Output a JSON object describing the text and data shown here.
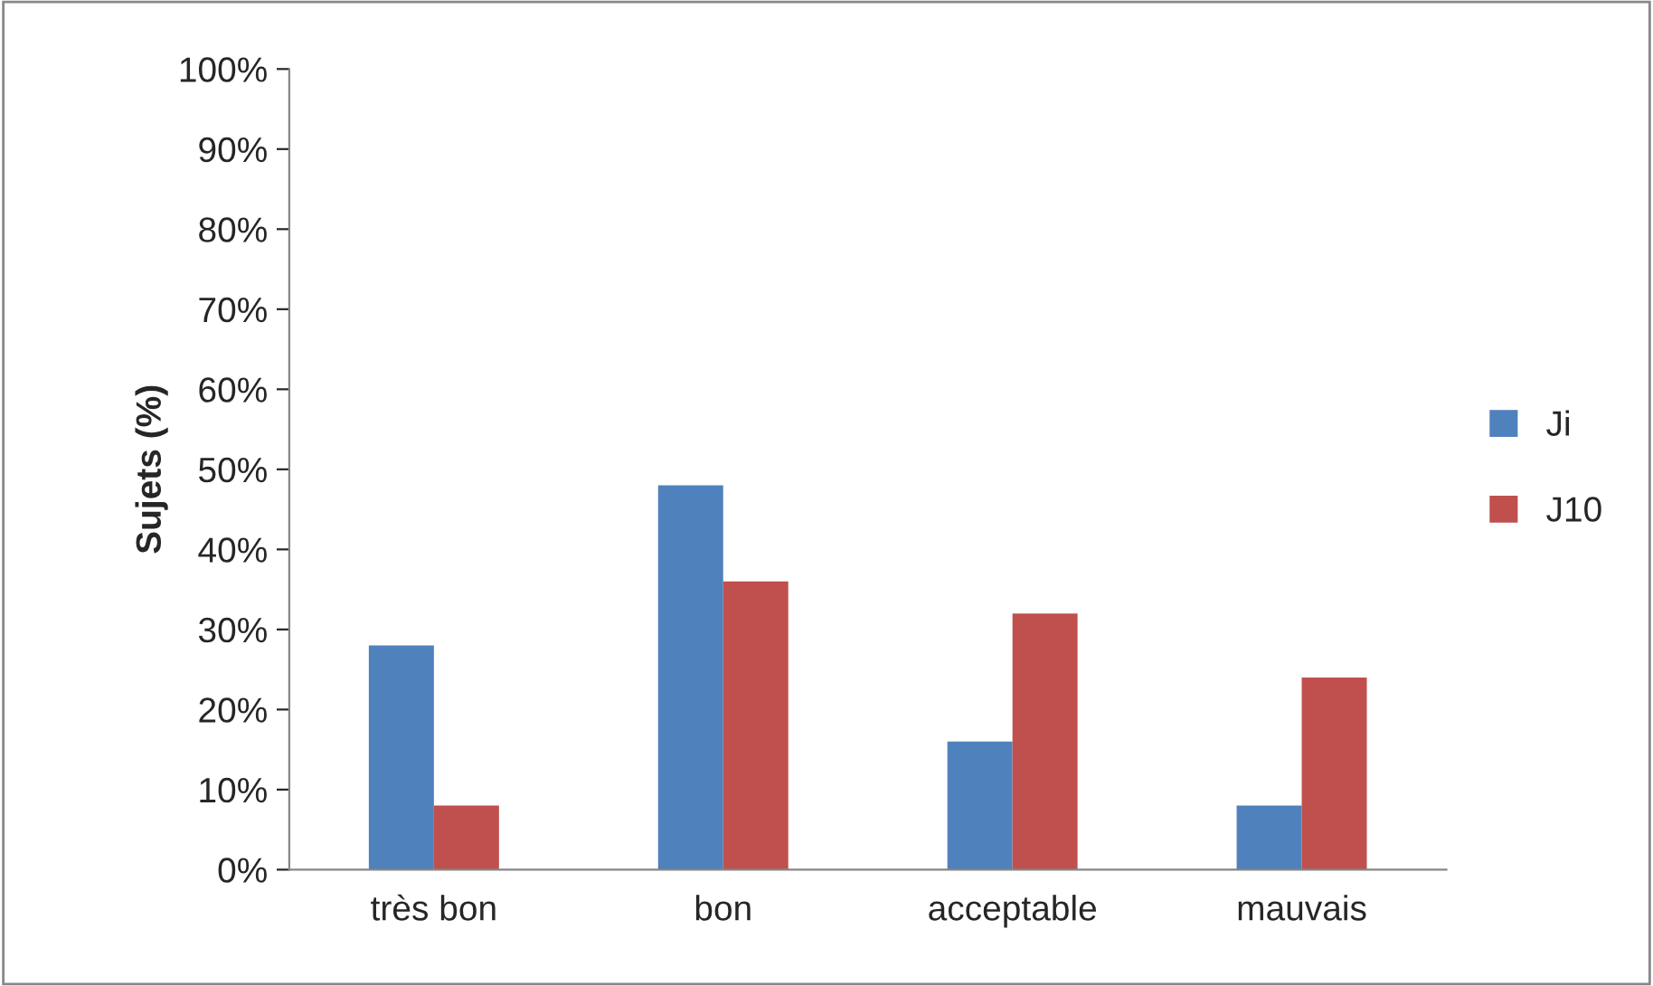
{
  "chart_data": {
    "type": "bar",
    "ylabel": "Sujets (%)",
    "categories": [
      "très bon",
      "bon",
      "acceptable",
      "mauvais"
    ],
    "series": [
      {
        "name": "Ji",
        "color": "#4f81bd",
        "values": [
          28,
          48,
          16,
          8
        ]
      },
      {
        "name": "J10",
        "color": "#c0504d",
        "values": [
          8,
          36,
          32,
          24
        ]
      }
    ],
    "ylim": [
      0,
      100
    ],
    "yticks": [
      {
        "value": 0,
        "label": "0%"
      },
      {
        "value": 10,
        "label": "10%"
      },
      {
        "value": 20,
        "label": "20%"
      },
      {
        "value": 30,
        "label": "30%"
      },
      {
        "value": 40,
        "label": "40%"
      },
      {
        "value": 50,
        "label": "50%"
      },
      {
        "value": 60,
        "label": "60%"
      },
      {
        "value": 70,
        "label": "70%"
      },
      {
        "value": 80,
        "label": "80%"
      },
      {
        "value": 90,
        "label": "90%"
      },
      {
        "value": 100,
        "label": "100%"
      }
    ],
    "grid": false,
    "legend": "right"
  }
}
